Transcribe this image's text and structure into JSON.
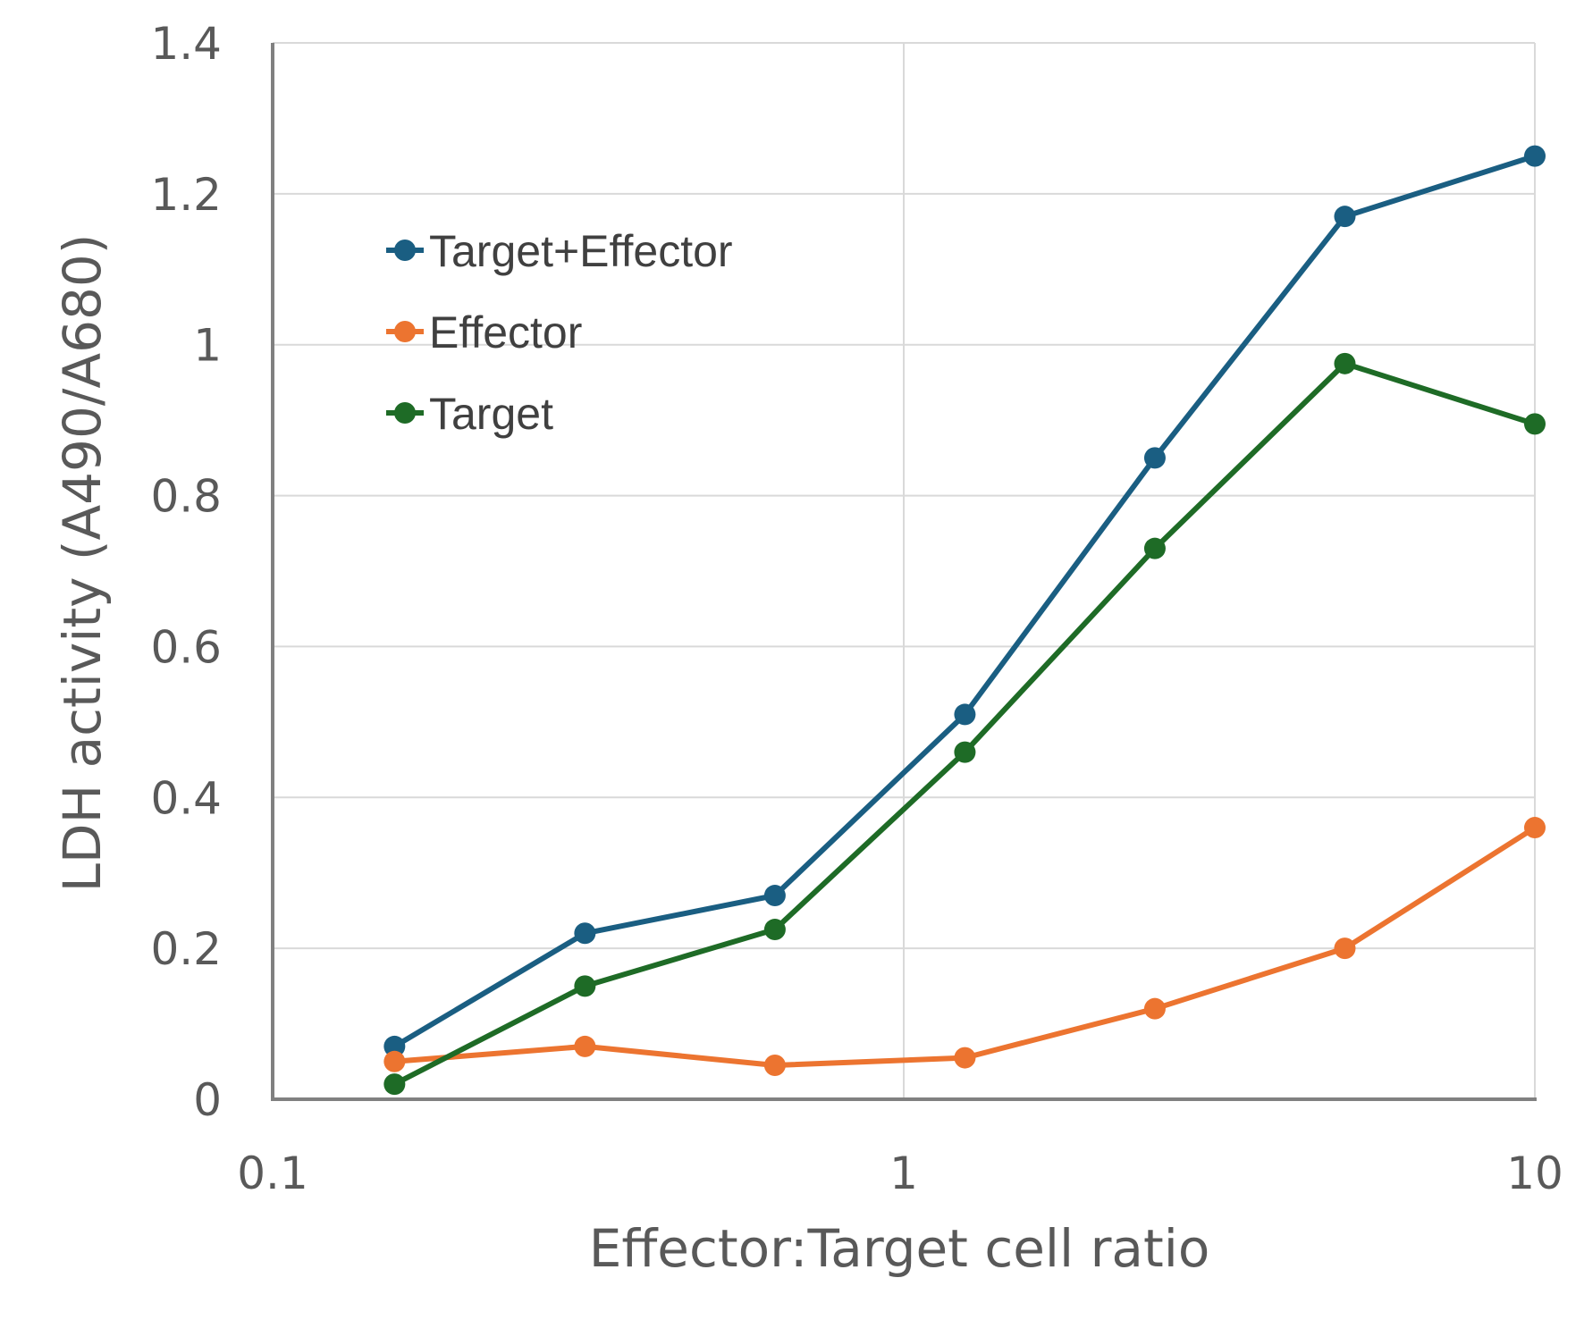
{
  "chart_data": {
    "type": "line",
    "x_scale": "log",
    "xlim": [
      0.1,
      10
    ],
    "ylim": [
      0,
      1.4
    ],
    "x_ticks": [
      "0.1",
      "1",
      "10"
    ],
    "y_ticks": [
      "0",
      "0.2",
      "0.4",
      "0.6",
      "0.8",
      "1",
      "1.2",
      "1.4"
    ],
    "xlabel": "Effector:Target cell ratio",
    "ylabel": "LDH activity (A490/A680)",
    "grid": true,
    "legend_position": "upper-left",
    "x": [
      0.156,
      0.3125,
      0.625,
      1.25,
      2.5,
      5,
      10
    ],
    "series": [
      {
        "name": "Target+Effector",
        "color": "#1a5e82",
        "values": [
          0.07,
          0.22,
          0.27,
          0.51,
          0.85,
          1.17,
          1.25
        ]
      },
      {
        "name": "Effector",
        "color": "#ec7430",
        "values": [
          0.05,
          0.07,
          0.045,
          0.055,
          0.12,
          0.2,
          0.36
        ]
      },
      {
        "name": "Target",
        "color": "#1e6b26",
        "values": [
          0.02,
          0.15,
          0.225,
          0.46,
          0.73,
          0.975,
          0.895
        ]
      }
    ]
  }
}
